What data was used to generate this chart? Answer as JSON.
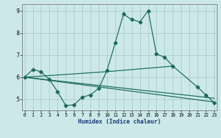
{
  "xlabel": "Humidex (Indice chaleur)",
  "x": [
    0,
    1,
    2,
    3,
    4,
    5,
    6,
    7,
    8,
    9,
    10,
    11,
    12,
    13,
    14,
    15,
    16,
    17,
    18,
    19,
    20,
    21,
    22,
    23
  ],
  "line1": [
    6.0,
    6.35,
    6.25,
    5.9,
    5.35,
    4.72,
    4.75,
    5.1,
    5.2,
    5.5,
    6.3,
    7.55,
    8.85,
    8.6,
    8.5,
    9.0,
    7.05,
    6.9,
    6.5,
    null,
    null,
    5.55,
    5.2,
    4.85
  ],
  "line2_x": [
    0,
    10,
    18
  ],
  "line2_y": [
    6.0,
    6.25,
    6.5
  ],
  "line3_x": [
    0,
    23
  ],
  "line3_y": [
    6.0,
    5.05
  ],
  "line4_x": [
    0,
    23
  ],
  "line4_y": [
    6.0,
    4.88
  ],
  "bg_color": "#cce8e8",
  "grid_color": "#aacccc",
  "line_color": "#1a6b5a",
  "ylim": [
    4.5,
    9.3
  ],
  "xlim": [
    -0.3,
    23.3
  ]
}
